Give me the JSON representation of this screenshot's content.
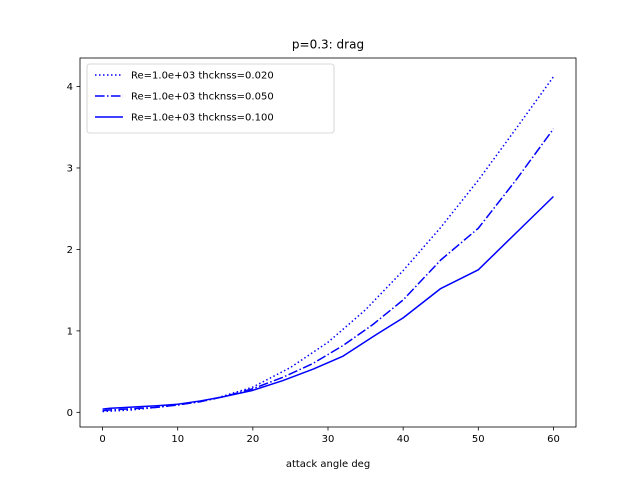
{
  "chart_data": {
    "type": "line",
    "title": "p=0.3: drag",
    "xlabel": "attack angle deg",
    "ylabel": "",
    "xlim": [
      -3,
      63
    ],
    "ylim": [
      -0.18,
      4.35
    ],
    "xticks": [
      0,
      10,
      20,
      30,
      40,
      50,
      60
    ],
    "yticks": [
      0,
      1,
      2,
      3,
      4
    ],
    "legend_position": "top-left",
    "grid": false,
    "series": [
      {
        "name": "Re=1.0e+03 thcknss=0.020",
        "style": "dotted",
        "color": "#0000ff",
        "x": [
          0,
          2,
          4,
          6,
          8,
          10,
          12,
          15,
          20,
          25,
          30,
          35,
          40,
          45,
          50,
          55,
          60
        ],
        "y": [
          0.01,
          0.02,
          0.03,
          0.05,
          0.07,
          0.09,
          0.12,
          0.17,
          0.31,
          0.55,
          0.86,
          1.26,
          1.74,
          2.27,
          2.85,
          3.48,
          4.12
        ]
      },
      {
        "name": "Re=1.0e+03 thcknss=0.050",
        "style": "dashdot",
        "color": "#0000ff",
        "x": [
          0,
          1,
          3,
          5,
          7,
          10,
          13,
          16,
          20,
          24,
          28,
          32,
          36,
          40,
          45,
          50,
          55,
          60
        ],
        "y": [
          0.02,
          0.03,
          0.04,
          0.05,
          0.06,
          0.09,
          0.13,
          0.19,
          0.29,
          0.43,
          0.6,
          0.82,
          1.08,
          1.38,
          1.87,
          2.26,
          2.85,
          3.48
        ]
      },
      {
        "name": "Re=1.0e+03 thcknss=0.100",
        "style": "solid",
        "color": "#0000ff",
        "x": [
          0,
          1,
          3,
          5,
          7,
          10,
          13,
          16,
          20,
          24,
          28,
          32,
          36,
          40,
          45,
          50,
          55,
          60
        ],
        "y": [
          0.04,
          0.05,
          0.06,
          0.07,
          0.08,
          0.1,
          0.14,
          0.19,
          0.27,
          0.39,
          0.53,
          0.69,
          0.93,
          1.16,
          1.52,
          1.75,
          2.2,
          2.65
        ]
      }
    ]
  }
}
